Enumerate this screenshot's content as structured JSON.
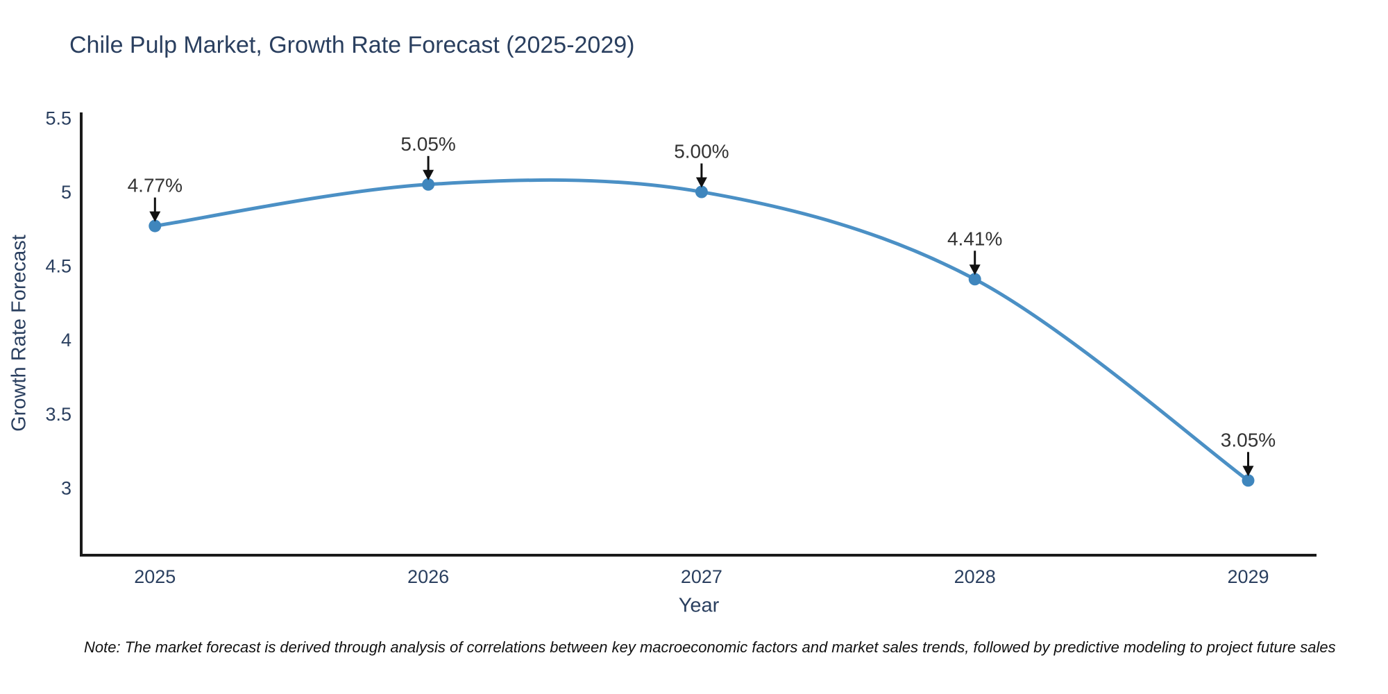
{
  "chart_data": {
    "type": "line",
    "title": "Chile Pulp Market, Growth Rate Forecast (2025-2029)",
    "xlabel": "Year",
    "ylabel": "Growth Rate Forecast",
    "x": [
      2025,
      2026,
      2027,
      2028,
      2029
    ],
    "series": [
      {
        "name": "Growth Rate Forecast",
        "values": [
          4.77,
          5.05,
          5.0,
          4.41,
          3.05
        ]
      }
    ],
    "point_labels": [
      "4.77%",
      "5.05%",
      "5.00%",
      "4.41%",
      "3.05%"
    ],
    "xticks": [
      "2025",
      "2026",
      "2027",
      "2028",
      "2029"
    ],
    "yticks": [
      "3",
      "3.5",
      "4",
      "4.5",
      "5",
      "5.5"
    ],
    "xlim": [
      2024.73,
      2029.25
    ],
    "ylim": [
      2.545,
      5.537
    ],
    "grid": false,
    "legend": "none",
    "line_style": "spline",
    "marker_style": "circle",
    "annotation_arrow": "down",
    "colors": {
      "line": "#4b90c5",
      "marker": "#3f86bd",
      "axis": "#1a1a1a",
      "axis_text": "#2a3f5f",
      "annotation_text": "#333333",
      "arrow": "#111111",
      "title": "#2a3f5f",
      "background": "#ffffff"
    }
  },
  "footnote": {
    "text": "Note: The market forecast is derived through analysis of correlations between key macroeconomic factors and market sales trends, followed by predictive modeling to project future sales"
  }
}
